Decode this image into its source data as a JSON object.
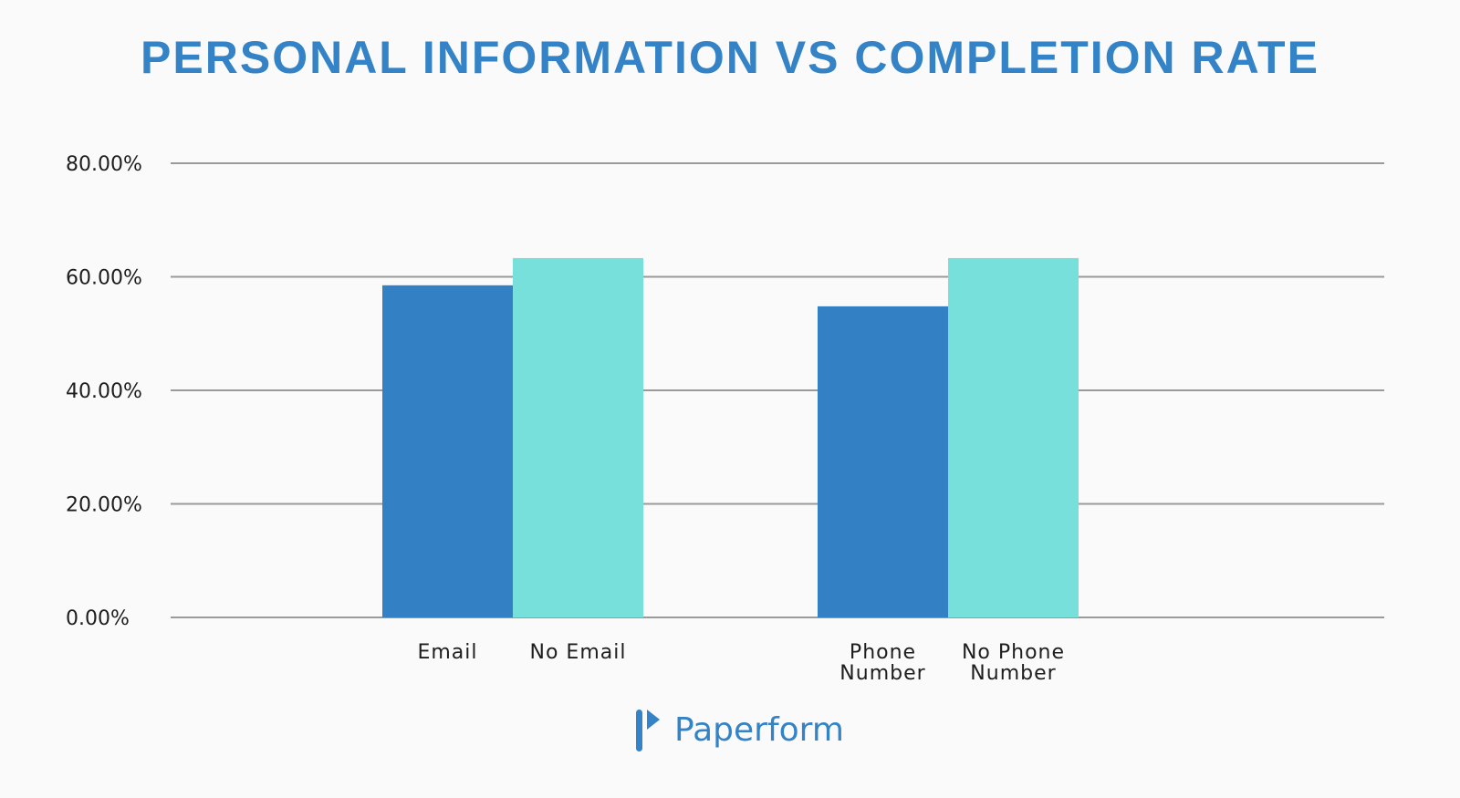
{
  "chart_data": {
    "type": "bar",
    "title": "PERSONAL INFORMATION VS COMPLETION RATE",
    "xlabel": "",
    "ylabel": "",
    "ylim": [
      0,
      80
    ],
    "yticks": [
      "0.00%",
      "20.00%",
      "40.00%",
      "60.00%",
      "80.00%"
    ],
    "grid": true,
    "legend": "none",
    "groups": [
      {
        "bars": [
          {
            "label": [
              "Email"
            ],
            "value": 58.5,
            "color": "#3381c4"
          },
          {
            "label": [
              "No Email"
            ],
            "value": 63.3,
            "color": "#78e0da"
          }
        ]
      },
      {
        "bars": [
          {
            "label": [
              "Phone",
              "Number"
            ],
            "value": 54.8,
            "color": "#3381c4"
          },
          {
            "label": [
              "No Phone",
              "Number"
            ],
            "value": 63.3,
            "color": "#78e0da"
          }
        ]
      }
    ]
  },
  "brand": {
    "name": "Paperform",
    "logo_icon": "paperform-logo-icon",
    "color": "#3483c6"
  }
}
